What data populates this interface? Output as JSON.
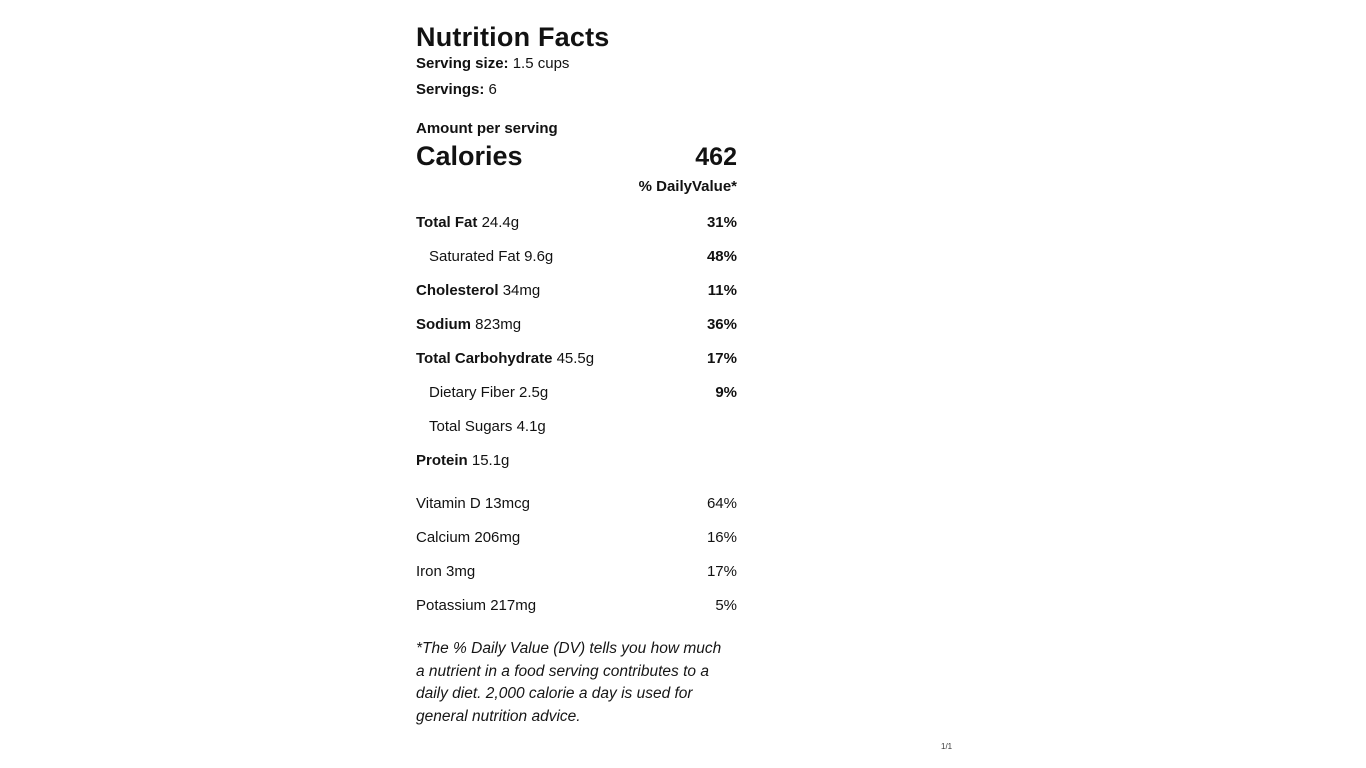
{
  "label": {
    "title": "Nutrition Facts",
    "serving_size_label": "Serving size:",
    "serving_size_value": "1.5 cups",
    "servings_label": "Servings:",
    "servings_value": "6",
    "amount_per_serving": "Amount per serving",
    "calories_label": "Calories",
    "calories_value": "462",
    "daily_value_header": "% DailyValue*",
    "nutrients": [
      {
        "name": "Total Fat",
        "amount": "24.4g",
        "dv": "31%"
      },
      {
        "name": "Saturated Fat",
        "amount": "9.6g",
        "dv": "48%"
      },
      {
        "name": "Cholesterol",
        "amount": "34mg",
        "dv": "11%"
      },
      {
        "name": "Sodium",
        "amount": "823mg",
        "dv": "36%"
      },
      {
        "name": "Total Carbohydrate",
        "amount": "45.5g",
        "dv": "17%"
      },
      {
        "name": "Dietary Fiber",
        "amount": "2.5g",
        "dv": "9%"
      },
      {
        "name": "Total Sugars",
        "amount": "4.1g",
        "dv": ""
      },
      {
        "name": "Protein",
        "amount": "15.1g",
        "dv": ""
      }
    ],
    "micronutrients": [
      {
        "name": "Vitamin D",
        "amount": "13mcg",
        "dv": "64%"
      },
      {
        "name": "Calcium",
        "amount": "206mg",
        "dv": "16%"
      },
      {
        "name": "Iron",
        "amount": "3mg",
        "dv": "17%"
      },
      {
        "name": "Potassium",
        "amount": "217mg",
        "dv": "5%"
      }
    ],
    "footnote": "*The % Daily Value (DV) tells you how much a nutrient in a food serving contributes to a daily diet. 2,000 calorie a day is used for general nutrition advice.",
    "page_indicator": "1/1"
  }
}
